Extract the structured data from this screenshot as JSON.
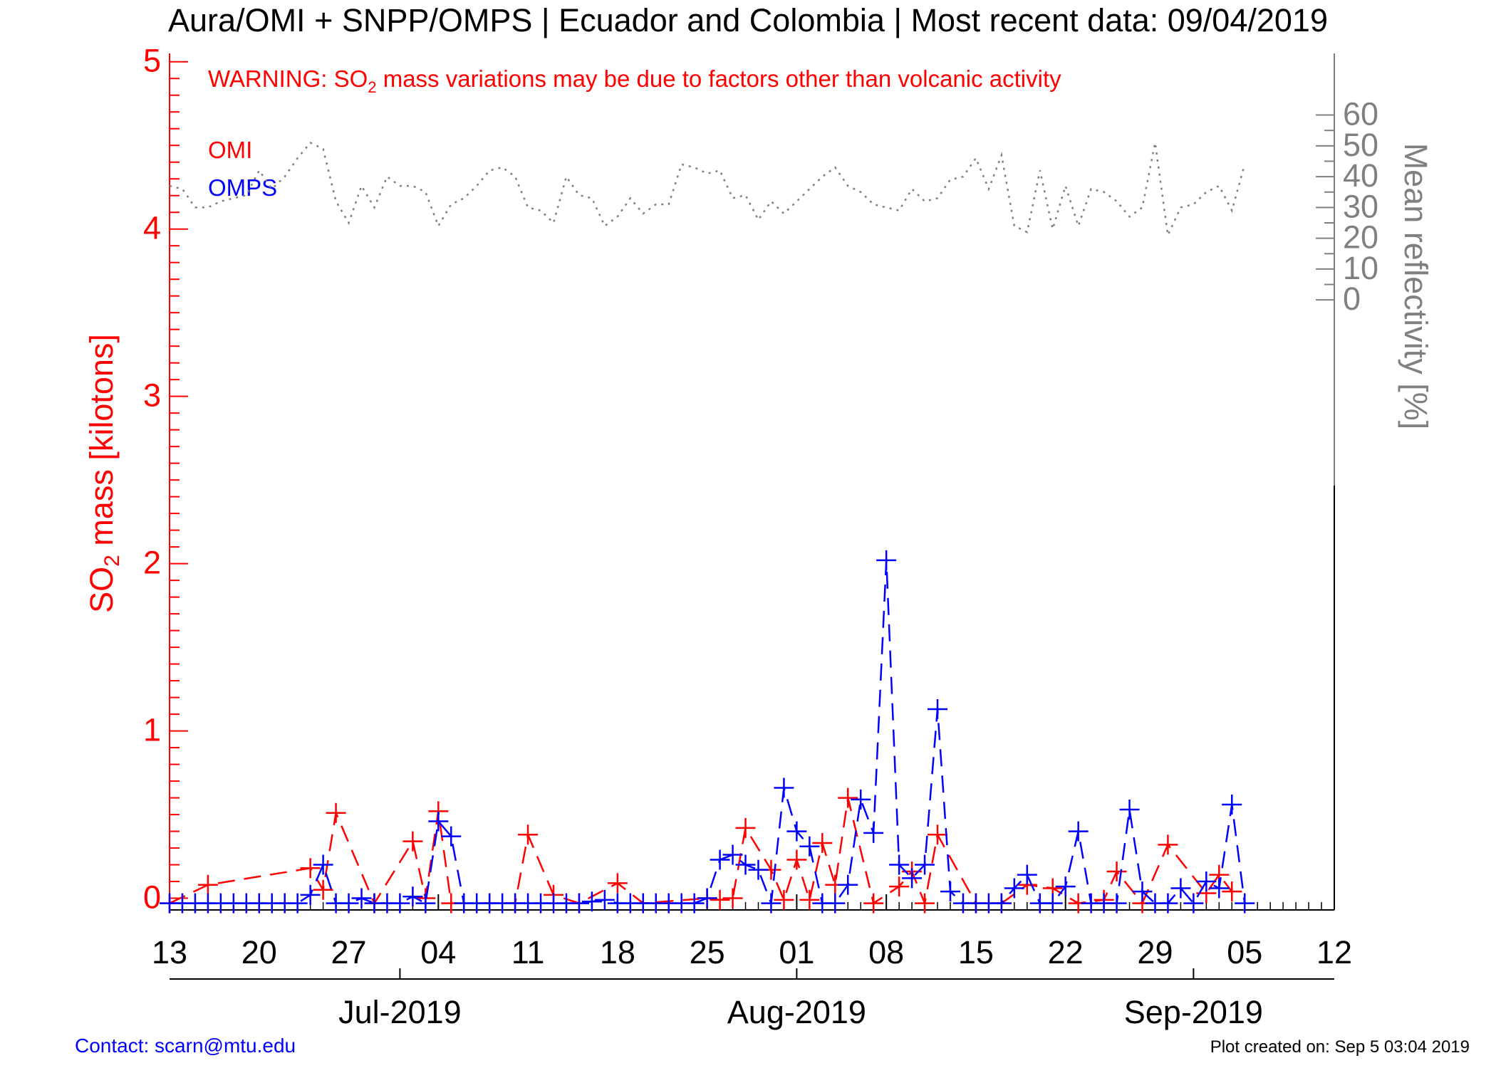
{
  "title": "Aura/OMI + SNPP/OMPS | Ecuador and Colombia | Most recent data: 09/04/2019",
  "warning": {
    "prefix": "WARNING: SO",
    "subscript": "2",
    "suffix": " mass variations may be due to factors other than volcanic activity"
  },
  "footer": {
    "contact": "Contact: scarn@mtu.edu",
    "created": "Plot created on: Sep  5 03:04 2019"
  },
  "colors": {
    "omi": "#ff0000",
    "omps": "#0000ff",
    "reflectivity": "#808080",
    "axis": "#000000"
  },
  "chart_data": {
    "type": "line",
    "title": "Aura/OMI + SNPP/OMPS | Ecuador and Colombia | Most recent data: 09/04/2019",
    "x_unit": "date",
    "xlim": [
      "2019-06-13",
      "2019-09-12"
    ],
    "x_ticks": [
      "2019-06-13",
      "2019-06-20",
      "2019-06-27",
      "2019-07-04",
      "2019-07-11",
      "2019-07-18",
      "2019-07-25",
      "2019-08-01",
      "2019-08-08",
      "2019-08-15",
      "2019-08-22",
      "2019-08-29",
      "2019-09-05",
      "2019-09-12"
    ],
    "x_tick_labels": [
      "13",
      "20",
      "27",
      "04",
      "11",
      "18",
      "25",
      "01",
      "08",
      "15",
      "22",
      "29",
      "05",
      "12"
    ],
    "month_labels": [
      {
        "date": "2019-07-01",
        "label": "Jul-2019"
      },
      {
        "date": "2019-08-01",
        "label": "Aug-2019"
      },
      {
        "date": "2019-09-01",
        "label": "Sep-2019"
      }
    ],
    "y_left": {
      "label_prefix": "SO",
      "label_subscript": "2",
      "label_suffix": " mass [kilotons]",
      "lim": [
        -0.07,
        5.05
      ],
      "ticks": [
        0,
        1,
        2,
        3,
        4,
        5
      ],
      "tick_labels": [
        "0",
        "1",
        "2",
        "3",
        "4",
        "5"
      ]
    },
    "y_right": {
      "label": "Mean reflectivity [%]",
      "lim": [
        -198,
        80
      ],
      "ticks": [
        0,
        10,
        20,
        30,
        40,
        50,
        60
      ],
      "tick_labels": [
        "0",
        "10",
        "20",
        "30",
        "40",
        "50",
        "60"
      ]
    },
    "legend": {
      "position": "top-left",
      "entries": [
        "OMI",
        "OMPS"
      ]
    },
    "series": [
      {
        "name": "OMI",
        "color": "#ff0000",
        "axis": "left",
        "style": "dashed",
        "marker": "plus",
        "points": [
          [
            "2019-06-13",
            -0.03
          ],
          [
            "2019-06-16",
            0.08
          ],
          [
            "2019-06-24",
            0.18
          ],
          [
            "2019-06-25",
            0.05
          ],
          [
            "2019-06-26",
            0.51
          ],
          [
            "2019-06-29",
            -0.03
          ],
          [
            "2019-07-02",
            0.34
          ],
          [
            "2019-07-03",
            0.0
          ],
          [
            "2019-07-04",
            0.52
          ],
          [
            "2019-07-05",
            -0.03
          ],
          [
            "2019-07-08",
            -0.03
          ],
          [
            "2019-07-10",
            -0.03
          ],
          [
            "2019-07-11",
            0.38
          ],
          [
            "2019-07-13",
            0.02
          ],
          [
            "2019-07-15",
            -0.03
          ],
          [
            "2019-07-18",
            0.09
          ],
          [
            "2019-07-20",
            -0.03
          ],
          [
            "2019-07-25",
            0.0
          ],
          [
            "2019-07-26",
            -0.01
          ],
          [
            "2019-07-27",
            0.0
          ],
          [
            "2019-07-28",
            0.42
          ],
          [
            "2019-07-30",
            0.17
          ],
          [
            "2019-07-31",
            -0.01
          ],
          [
            "2019-08-01",
            0.23
          ],
          [
            "2019-08-02",
            -0.01
          ],
          [
            "2019-08-03",
            0.33
          ],
          [
            "2019-08-04",
            0.08
          ],
          [
            "2019-08-05",
            0.6
          ],
          [
            "2019-08-07",
            -0.03
          ],
          [
            "2019-08-09",
            0.07
          ],
          [
            "2019-08-10",
            0.16
          ],
          [
            "2019-08-11",
            -0.03
          ],
          [
            "2019-08-12",
            0.38
          ],
          [
            "2019-08-15",
            -0.03
          ],
          [
            "2019-08-17",
            -0.03
          ],
          [
            "2019-08-19",
            0.08
          ],
          [
            "2019-08-21",
            0.06
          ],
          [
            "2019-08-23",
            -0.03
          ],
          [
            "2019-08-25",
            -0.01
          ],
          [
            "2019-08-26",
            0.16
          ],
          [
            "2019-08-28",
            -0.03
          ],
          [
            "2019-08-30",
            0.32
          ],
          [
            "2019-09-02",
            0.03
          ],
          [
            "2019-09-03",
            0.14
          ],
          [
            "2019-09-04",
            0.04
          ]
        ]
      },
      {
        "name": "OMPS",
        "color": "#0000ff",
        "axis": "left",
        "style": "dashed",
        "marker": "plus",
        "points": [
          [
            "2019-06-13",
            -0.03
          ],
          [
            "2019-06-14",
            -0.03
          ],
          [
            "2019-06-15",
            -0.03
          ],
          [
            "2019-06-16",
            -0.03
          ],
          [
            "2019-06-17",
            -0.03
          ],
          [
            "2019-06-18",
            -0.03
          ],
          [
            "2019-06-19",
            -0.03
          ],
          [
            "2019-06-20",
            -0.03
          ],
          [
            "2019-06-21",
            -0.03
          ],
          [
            "2019-06-22",
            -0.03
          ],
          [
            "2019-06-23",
            -0.03
          ],
          [
            "2019-06-24",
            0.02
          ],
          [
            "2019-06-25",
            0.2
          ],
          [
            "2019-06-26",
            -0.03
          ],
          [
            "2019-06-27",
            -0.03
          ],
          [
            "2019-06-28",
            0.0
          ],
          [
            "2019-06-29",
            -0.03
          ],
          [
            "2019-06-30",
            -0.03
          ],
          [
            "2019-07-01",
            -0.03
          ],
          [
            "2019-07-02",
            0.01
          ],
          [
            "2019-07-03",
            -0.03
          ],
          [
            "2019-07-04",
            0.46
          ],
          [
            "2019-07-05",
            0.37
          ],
          [
            "2019-07-06",
            -0.03
          ],
          [
            "2019-07-07",
            -0.03
          ],
          [
            "2019-07-08",
            -0.03
          ],
          [
            "2019-07-09",
            -0.03
          ],
          [
            "2019-07-10",
            -0.03
          ],
          [
            "2019-07-11",
            -0.03
          ],
          [
            "2019-07-12",
            -0.03
          ],
          [
            "2019-07-13",
            -0.03
          ],
          [
            "2019-07-14",
            -0.03
          ],
          [
            "2019-07-15",
            -0.03
          ],
          [
            "2019-07-16",
            -0.02
          ],
          [
            "2019-07-17",
            -0.01
          ],
          [
            "2019-07-18",
            -0.03
          ],
          [
            "2019-07-19",
            -0.03
          ],
          [
            "2019-07-20",
            -0.03
          ],
          [
            "2019-07-21",
            -0.03
          ],
          [
            "2019-07-22",
            -0.03
          ],
          [
            "2019-07-23",
            -0.03
          ],
          [
            "2019-07-24",
            -0.03
          ],
          [
            "2019-07-25",
            0.0
          ],
          [
            "2019-07-26",
            0.23
          ],
          [
            "2019-07-27",
            0.26
          ],
          [
            "2019-07-28",
            0.2
          ],
          [
            "2019-07-29",
            0.17
          ],
          [
            "2019-07-30",
            -0.03
          ],
          [
            "2019-07-31",
            0.66
          ],
          [
            "2019-08-01",
            0.4
          ],
          [
            "2019-08-02",
            0.31
          ],
          [
            "2019-08-03",
            -0.03
          ],
          [
            "2019-08-04",
            -0.03
          ],
          [
            "2019-08-05",
            0.08
          ],
          [
            "2019-08-06",
            0.59
          ],
          [
            "2019-08-07",
            0.39
          ],
          [
            "2019-08-08",
            2.02
          ],
          [
            "2019-08-09",
            0.2
          ],
          [
            "2019-08-10",
            0.12
          ],
          [
            "2019-08-11",
            0.2
          ],
          [
            "2019-08-12",
            1.13
          ],
          [
            "2019-08-13",
            0.04
          ],
          [
            "2019-08-14",
            -0.03
          ],
          [
            "2019-08-15",
            -0.03
          ],
          [
            "2019-08-16",
            -0.03
          ],
          [
            "2019-08-17",
            -0.03
          ],
          [
            "2019-08-18",
            0.06
          ],
          [
            "2019-08-19",
            0.14
          ],
          [
            "2019-08-20",
            -0.03
          ],
          [
            "2019-08-21",
            -0.03
          ],
          [
            "2019-08-22",
            0.07
          ],
          [
            "2019-08-23",
            0.4
          ],
          [
            "2019-08-24",
            -0.03
          ],
          [
            "2019-08-25",
            -0.03
          ],
          [
            "2019-08-26",
            -0.03
          ],
          [
            "2019-08-27",
            0.53
          ],
          [
            "2019-08-28",
            0.04
          ],
          [
            "2019-08-29",
            -0.03
          ],
          [
            "2019-08-30",
            -0.03
          ],
          [
            "2019-08-31",
            0.06
          ],
          [
            "2019-09-01",
            -0.03
          ],
          [
            "2019-09-02",
            0.1
          ],
          [
            "2019-09-03",
            0.06
          ],
          [
            "2019-09-04",
            0.56
          ],
          [
            "2019-09-05",
            -0.03
          ]
        ]
      },
      {
        "name": "Mean reflectivity",
        "color": "#808080",
        "axis": "right",
        "style": "dotted",
        "marker": "none",
        "points": [
          [
            "2019-06-13",
            37
          ],
          [
            "2019-06-14",
            36
          ],
          [
            "2019-06-15",
            30
          ],
          [
            "2019-06-16",
            30
          ],
          [
            "2019-06-17",
            32
          ],
          [
            "2019-06-18",
            33
          ],
          [
            "2019-06-19",
            34
          ],
          [
            "2019-06-20",
            42
          ],
          [
            "2019-06-21",
            36
          ],
          [
            "2019-06-22",
            40
          ],
          [
            "2019-06-23",
            46
          ],
          [
            "2019-06-24",
            51
          ],
          [
            "2019-06-25",
            49
          ],
          [
            "2019-06-26",
            32
          ],
          [
            "2019-06-27",
            25
          ],
          [
            "2019-06-28",
            37
          ],
          [
            "2019-06-29",
            30
          ],
          [
            "2019-06-30",
            40
          ],
          [
            "2019-07-01",
            37
          ],
          [
            "2019-07-02",
            37
          ],
          [
            "2019-07-03",
            35
          ],
          [
            "2019-07-04",
            24
          ],
          [
            "2019-07-05",
            31
          ],
          [
            "2019-07-06",
            33
          ],
          [
            "2019-07-07",
            37
          ],
          [
            "2019-07-08",
            42
          ],
          [
            "2019-07-09",
            43
          ],
          [
            "2019-07-10",
            40
          ],
          [
            "2019-07-11",
            30
          ],
          [
            "2019-07-12",
            29
          ],
          [
            "2019-07-13",
            25
          ],
          [
            "2019-07-14",
            40
          ],
          [
            "2019-07-15",
            34
          ],
          [
            "2019-07-16",
            33
          ],
          [
            "2019-07-17",
            24
          ],
          [
            "2019-07-18",
            27
          ],
          [
            "2019-07-19",
            33
          ],
          [
            "2019-07-20",
            28
          ],
          [
            "2019-07-21",
            31
          ],
          [
            "2019-07-22",
            31
          ],
          [
            "2019-07-23",
            44
          ],
          [
            "2019-07-24",
            43
          ],
          [
            "2019-07-25",
            41
          ],
          [
            "2019-07-26",
            42
          ],
          [
            "2019-07-27",
            33
          ],
          [
            "2019-07-28",
            34
          ],
          [
            "2019-07-29",
            26
          ],
          [
            "2019-07-30",
            32
          ],
          [
            "2019-07-31",
            28
          ],
          [
            "2019-08-01",
            32
          ],
          [
            "2019-08-02",
            36
          ],
          [
            "2019-08-03",
            40
          ],
          [
            "2019-08-04",
            43
          ],
          [
            "2019-08-05",
            37
          ],
          [
            "2019-08-06",
            35
          ],
          [
            "2019-08-07",
            31
          ],
          [
            "2019-08-08",
            30
          ],
          [
            "2019-08-09",
            29
          ],
          [
            "2019-08-10",
            36
          ],
          [
            "2019-08-11",
            32
          ],
          [
            "2019-08-12",
            33
          ],
          [
            "2019-08-13",
            39
          ],
          [
            "2019-08-14",
            40
          ],
          [
            "2019-08-15",
            46
          ],
          [
            "2019-08-16",
            36
          ],
          [
            "2019-08-17",
            47
          ],
          [
            "2019-08-18",
            24
          ],
          [
            "2019-08-19",
            22
          ],
          [
            "2019-08-20",
            42
          ],
          [
            "2019-08-21",
            23
          ],
          [
            "2019-08-22",
            37
          ],
          [
            "2019-08-23",
            24
          ],
          [
            "2019-08-24",
            36
          ],
          [
            "2019-08-25",
            35
          ],
          [
            "2019-08-26",
            32
          ],
          [
            "2019-08-27",
            27
          ],
          [
            "2019-08-28",
            30
          ],
          [
            "2019-08-29",
            51
          ],
          [
            "2019-08-30",
            21
          ],
          [
            "2019-08-31",
            30
          ],
          [
            "2019-09-01",
            31
          ],
          [
            "2019-09-02",
            35
          ],
          [
            "2019-09-03",
            37
          ],
          [
            "2019-09-04",
            29
          ],
          [
            "2019-09-05",
            44
          ]
        ]
      }
    ]
  }
}
